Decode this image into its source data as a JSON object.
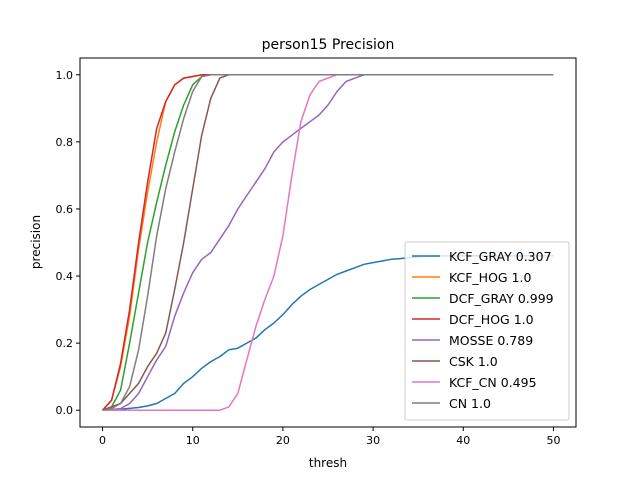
{
  "chart_data": {
    "type": "line",
    "title": "person15 Precision",
    "xlabel": "thresh",
    "ylabel": "precision",
    "xlim": [
      -2.5,
      52.5
    ],
    "ylim": [
      -0.05,
      1.05
    ],
    "xticks": [
      0,
      10,
      20,
      30,
      40,
      50
    ],
    "yticks": [
      0.0,
      0.2,
      0.4,
      0.6,
      0.8,
      1.0
    ],
    "grid": false,
    "legend_position": "lower-right",
    "series": [
      {
        "name": "KCF_GRAY 0.307",
        "color": "#1f77b4",
        "x": [
          0,
          2,
          4,
          5,
          6,
          7,
          8,
          9,
          10,
          11,
          12,
          13,
          14,
          15,
          16,
          17,
          18,
          19,
          20,
          21,
          22,
          23,
          24,
          25,
          26,
          27,
          28,
          29,
          30,
          31,
          32,
          33,
          34,
          35,
          36,
          38,
          40,
          42,
          44,
          46,
          48,
          50
        ],
        "y": [
          0.0,
          0.003,
          0.008,
          0.013,
          0.02,
          0.035,
          0.05,
          0.08,
          0.1,
          0.125,
          0.145,
          0.16,
          0.18,
          0.185,
          0.2,
          0.215,
          0.24,
          0.26,
          0.285,
          0.315,
          0.34,
          0.36,
          0.375,
          0.39,
          0.405,
          0.415,
          0.425,
          0.435,
          0.44,
          0.445,
          0.45,
          0.452,
          0.455,
          0.457,
          0.459,
          0.46,
          0.46,
          0.46,
          0.46,
          0.46,
          0.46,
          0.46
        ]
      },
      {
        "name": "KCF_HOG 1.0",
        "color": "#ff7f0e",
        "x": [
          0,
          1,
          2,
          3,
          4,
          5,
          6,
          7,
          8,
          9,
          10,
          11,
          12,
          15,
          20,
          30,
          40,
          50
        ],
        "y": [
          0.0,
          0.03,
          0.13,
          0.28,
          0.48,
          0.65,
          0.8,
          0.92,
          0.97,
          0.99,
          0.995,
          1.0,
          1.0,
          1.0,
          1.0,
          1.0,
          1.0,
          1.0
        ]
      },
      {
        "name": "DCF_GRAY 0.999",
        "color": "#2ca02c",
        "x": [
          0,
          1,
          2,
          3,
          4,
          5,
          6,
          7,
          8,
          9,
          10,
          11,
          12,
          15,
          20,
          30,
          40,
          50
        ],
        "y": [
          0.0,
          0.01,
          0.06,
          0.2,
          0.35,
          0.5,
          0.62,
          0.73,
          0.83,
          0.91,
          0.97,
          0.995,
          1.0,
          1.0,
          1.0,
          1.0,
          1.0,
          1.0
        ]
      },
      {
        "name": "DCF_HOG 1.0",
        "color": "#d62728",
        "x": [
          0,
          1,
          2,
          3,
          4,
          5,
          6,
          7,
          8,
          9,
          10,
          11,
          12,
          15,
          20,
          30,
          40,
          50
        ],
        "y": [
          0.0,
          0.03,
          0.14,
          0.3,
          0.5,
          0.68,
          0.84,
          0.92,
          0.97,
          0.99,
          0.995,
          1.0,
          1.0,
          1.0,
          1.0,
          1.0,
          1.0,
          1.0
        ]
      },
      {
        "name": "MOSSE 0.789",
        "color": "#9467bd",
        "x": [
          0,
          2,
          3,
          4,
          5,
          6,
          7,
          8,
          9,
          10,
          11,
          12,
          13,
          14,
          15,
          16,
          17,
          18,
          19,
          20,
          21,
          22,
          23,
          24,
          25,
          26,
          27,
          28,
          29,
          30,
          35,
          40,
          45,
          50
        ],
        "y": [
          0.0,
          0.005,
          0.02,
          0.05,
          0.1,
          0.15,
          0.19,
          0.28,
          0.35,
          0.41,
          0.45,
          0.47,
          0.51,
          0.55,
          0.6,
          0.64,
          0.68,
          0.72,
          0.77,
          0.8,
          0.82,
          0.84,
          0.86,
          0.88,
          0.91,
          0.95,
          0.98,
          0.99,
          1.0,
          1.0,
          1.0,
          1.0,
          1.0,
          1.0
        ]
      },
      {
        "name": "CSK 1.0",
        "color": "#8c564b",
        "x": [
          0,
          2,
          4,
          5,
          6,
          7,
          8,
          9,
          10,
          11,
          12,
          13,
          14,
          15,
          20,
          30,
          40,
          50
        ],
        "y": [
          0.0,
          0.02,
          0.08,
          0.13,
          0.17,
          0.23,
          0.36,
          0.5,
          0.66,
          0.82,
          0.93,
          0.99,
          1.0,
          1.0,
          1.0,
          1.0,
          1.0,
          1.0
        ]
      },
      {
        "name": "KCF_CN 0.495",
        "color": "#e377c2",
        "x": [
          0,
          5,
          10,
          13,
          14,
          15,
          16,
          17,
          18,
          19,
          20,
          21,
          22,
          23,
          24,
          25,
          26,
          27,
          30,
          40,
          50
        ],
        "y": [
          0.0,
          0.0,
          0.0,
          0.0,
          0.01,
          0.05,
          0.15,
          0.25,
          0.33,
          0.4,
          0.52,
          0.7,
          0.86,
          0.94,
          0.98,
          0.99,
          1.0,
          1.0,
          1.0,
          1.0,
          1.0
        ]
      },
      {
        "name": "CN 1.0",
        "color": "#7f7f7f",
        "x": [
          0,
          1,
          2,
          3,
          4,
          5,
          6,
          7,
          8,
          9,
          10,
          11,
          12,
          15,
          20,
          30,
          40,
          50
        ],
        "y": [
          0.0,
          0.005,
          0.02,
          0.07,
          0.18,
          0.34,
          0.52,
          0.66,
          0.77,
          0.87,
          0.95,
          0.995,
          1.0,
          1.0,
          1.0,
          1.0,
          1.0,
          1.0
        ]
      }
    ]
  }
}
